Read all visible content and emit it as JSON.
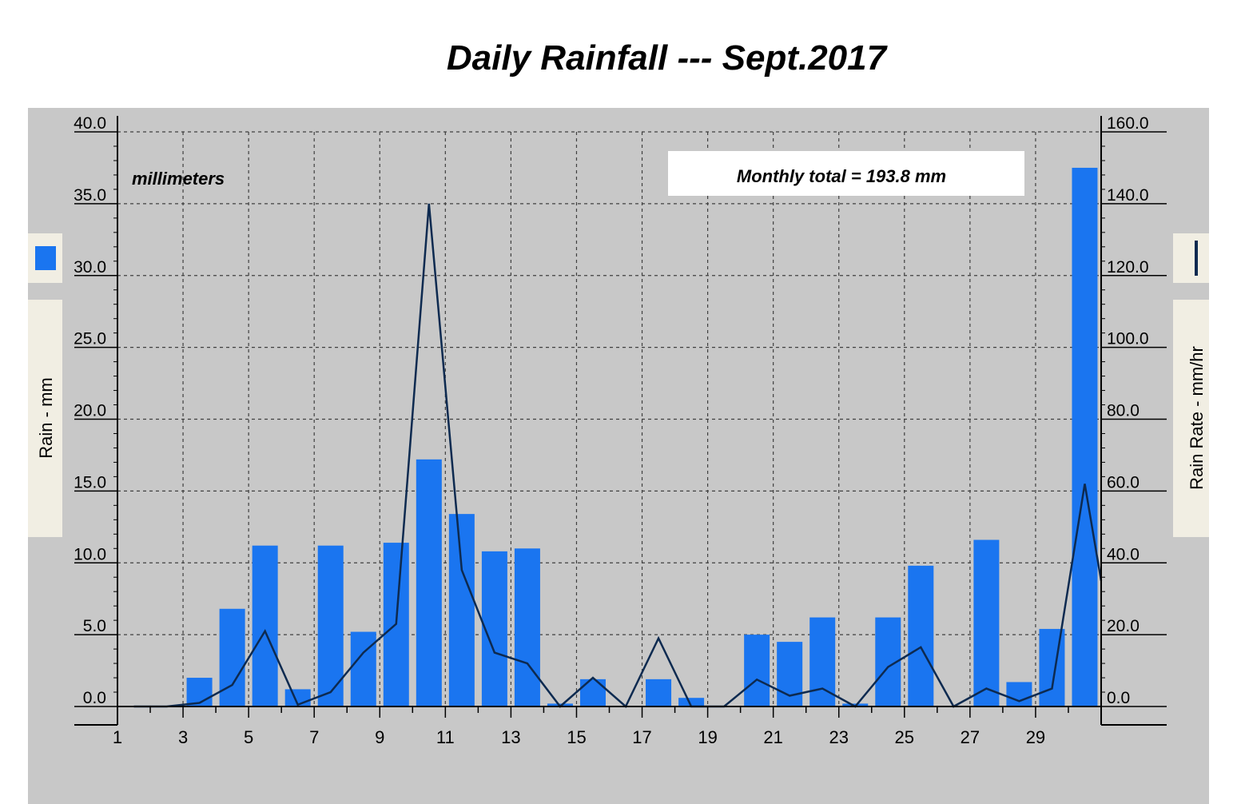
{
  "title": "Daily Rainfall --- Sept.2017",
  "annotations": {
    "units_label": "millimeters",
    "total_label": "Monthly total = 193.8 mm"
  },
  "legend": {
    "left_swatch_color": "#1a75f0",
    "right_line_color": "#0d2a50"
  },
  "chart_data": {
    "type": "bar",
    "title": "Daily Rainfall --- Sept.2017",
    "x": [
      1,
      2,
      3,
      4,
      5,
      6,
      7,
      8,
      9,
      10,
      11,
      12,
      13,
      14,
      15,
      16,
      17,
      18,
      19,
      20,
      21,
      22,
      23,
      24,
      25,
      26,
      27,
      28,
      29,
      30
    ],
    "x_tick_labels": [
      "1",
      "3",
      "5",
      "7",
      "9",
      "11",
      "13",
      "15",
      "17",
      "19",
      "21",
      "23",
      "25",
      "27",
      "29"
    ],
    "xlim": [
      1,
      31
    ],
    "ylabel_left": "Rain - mm",
    "ylabel_right": "Rain Rate - mm/hr",
    "ylim_left": [
      0,
      40
    ],
    "ylim_right": [
      0,
      160
    ],
    "y_ticks_left": [
      "0.0",
      "5.0",
      "10.0",
      "15.0",
      "20.0",
      "25.0",
      "30.0",
      "35.0",
      "40.0"
    ],
    "y_ticks_right": [
      "0.0",
      "20.0",
      "40.0",
      "60.0",
      "80.0",
      "100.0",
      "120.0",
      "140.0",
      "160.0"
    ],
    "grid": true,
    "series": [
      {
        "name": "Rain - mm",
        "kind": "bar",
        "axis": "left",
        "color": "#1a75f0",
        "values": [
          0,
          0,
          2.0,
          6.8,
          11.2,
          1.2,
          11.2,
          5.2,
          11.4,
          17.2,
          13.4,
          10.8,
          11.0,
          0.2,
          1.9,
          0,
          1.9,
          0.6,
          0,
          5.0,
          4.5,
          6.2,
          0.2,
          6.2,
          9.8,
          0,
          11.6,
          1.7,
          5.4,
          37.5
        ]
      },
      {
        "name": "Rain Rate - mm/hr",
        "kind": "line",
        "axis": "right",
        "color": "#0d2a50",
        "x": [
          1.5,
          2.5,
          3.5,
          4.5,
          5.5,
          6.5,
          7.5,
          8.5,
          9.5,
          10.5,
          11.5,
          12.5,
          13.5,
          14.5,
          15.5,
          16.5,
          17.5,
          18.5,
          19.5,
          20.5,
          21.5,
          22.5,
          23.5,
          24.5,
          25.5,
          26.5,
          27.5,
          28.5,
          29.5,
          30.5,
          31.0
        ],
        "values": [
          0,
          0,
          1,
          6,
          21,
          0.5,
          4,
          15,
          23,
          140,
          38,
          15,
          12,
          0,
          8,
          0,
          19,
          0,
          0,
          7.5,
          3,
          5,
          0,
          11,
          16.5,
          0,
          5,
          1.5,
          5,
          62,
          35
        ]
      }
    ]
  }
}
